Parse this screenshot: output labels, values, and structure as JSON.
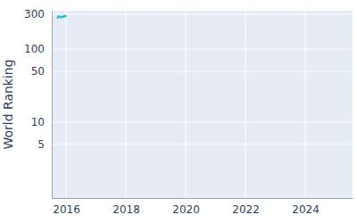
{
  "chart_data": {
    "type": "line",
    "ylabel": "World Ranking",
    "x": [
      2015.7,
      2015.74,
      2015.78,
      2015.82,
      2015.86,
      2015.9,
      2015.94,
      2015.98,
      2016.0
    ],
    "values": [
      262,
      282,
      276,
      270,
      279,
      274,
      284,
      280,
      292
    ],
    "color": "#17becf",
    "xlim": [
      2015.52,
      2025.58
    ],
    "xticks": [
      2016,
      2018,
      2020,
      2022,
      2024
    ],
    "ylim": [
      0.92,
      335
    ],
    "yticks": [
      5,
      10,
      50,
      100,
      300
    ],
    "log": "y",
    "grid": true
  }
}
